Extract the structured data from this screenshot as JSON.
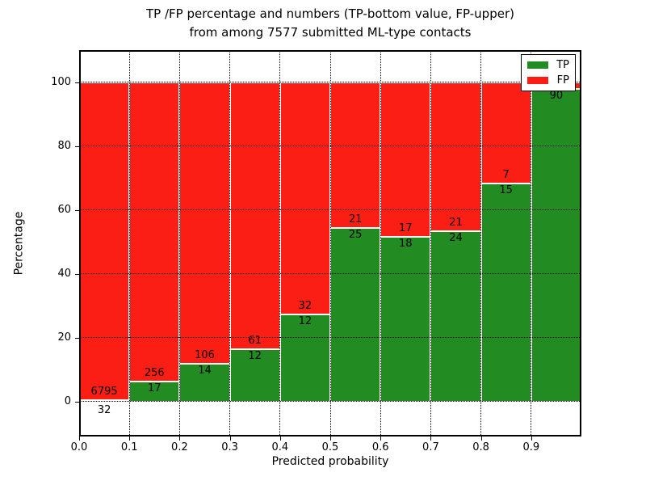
{
  "chart_data": {
    "type": "bar",
    "subtype": "stacked_percentage",
    "title_line1": "TP /FP percentage and numbers (TP-bottom value, FP-upper)",
    "title_line2": "from among 7577 submitted ML-type contacts",
    "xlabel": "Predicted probability",
    "ylabel": "Percentage",
    "x_tick_labels": [
      "0.0",
      "0.1",
      "0.2",
      "0.3",
      "0.4",
      "0.5",
      "0.6",
      "0.7",
      "0.8",
      "0.9"
    ],
    "y_tick_values": [
      0,
      20,
      40,
      60,
      80,
      100
    ],
    "xlim": [
      0,
      1.0
    ],
    "ylim": [
      -11,
      110
    ],
    "grid": "dotted black, vertical at each 0.1 and horizontal at each y tick, drawn over bars",
    "legend_position": "upper right",
    "legend": [
      {
        "label": "TP",
        "color": "#228b22"
      },
      {
        "label": "FP",
        "color": "#fb1e14"
      }
    ],
    "colors": {
      "tp": "#228b22",
      "fp": "#fb1e14",
      "bar_edge": "#ffffff"
    },
    "bins": [
      {
        "range": "0.0-0.1",
        "tp": 32,
        "fp": 6795,
        "tp_pct": 0.47
      },
      {
        "range": "0.1-0.2",
        "tp": 17,
        "fp": 256,
        "tp_pct": 6.23
      },
      {
        "range": "0.2-0.3",
        "tp": 14,
        "fp": 106,
        "tp_pct": 11.67
      },
      {
        "range": "0.3-0.4",
        "tp": 12,
        "fp": 61,
        "tp_pct": 16.44
      },
      {
        "range": "0.4-0.5",
        "tp": 12,
        "fp": 32,
        "tp_pct": 27.27
      },
      {
        "range": "0.5-0.6",
        "tp": 25,
        "fp": 21,
        "tp_pct": 54.35
      },
      {
        "range": "0.6-0.7",
        "tp": 18,
        "fp": 17,
        "tp_pct": 51.43
      },
      {
        "range": "0.7-0.8",
        "tp": 24,
        "fp": 21,
        "tp_pct": 53.33
      },
      {
        "range": "0.8-0.9",
        "tp": 15,
        "fp": 7,
        "tp_pct": 68.18
      },
      {
        "range": "0.9-1.0",
        "tp": 90,
        "fp": null,
        "fp_label_hidden": true,
        "tp_pct": 97.8
      }
    ]
  }
}
